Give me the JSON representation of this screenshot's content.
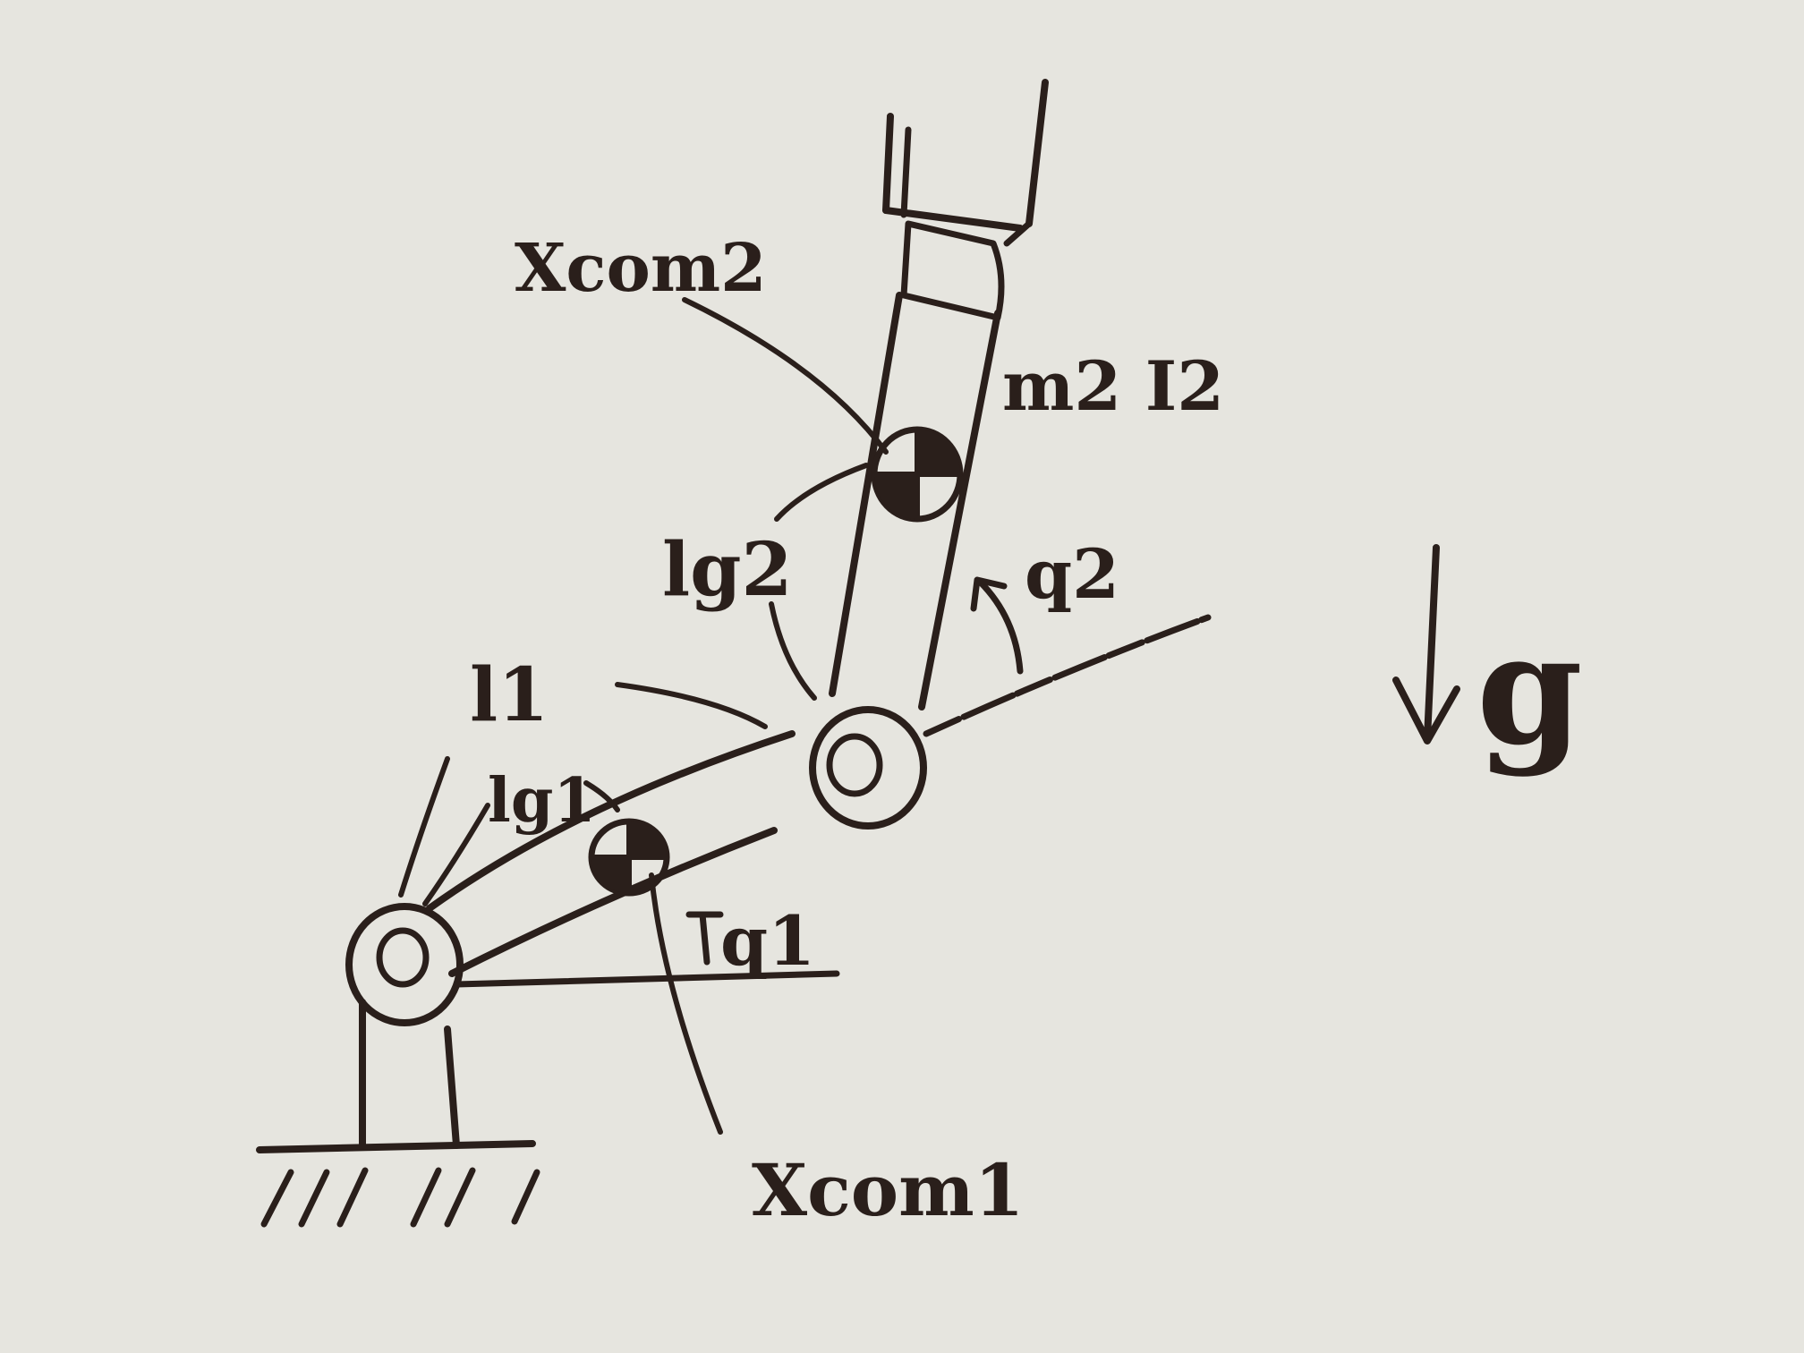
{
  "diagram": {
    "kind": "two-link planar robot arm (hand sketch)",
    "ink_color": "#2a1f1b",
    "paper_color": "#e6e5df",
    "labels": {
      "x_com2": "Xcom2",
      "m2_i2": "m2 I2",
      "lg2": "lg2",
      "q2": "q2",
      "l1": "l1",
      "lg1": "lg1",
      "q1": "q1",
      "x_com1": "Xcom1",
      "g": "g"
    }
  }
}
